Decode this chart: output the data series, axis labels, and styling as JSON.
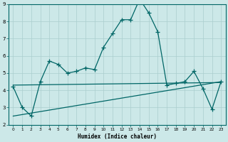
{
  "xlabel": "Humidex (Indice chaleur)",
  "x": [
    0,
    1,
    2,
    3,
    4,
    5,
    6,
    7,
    8,
    9,
    10,
    11,
    12,
    13,
    14,
    15,
    16,
    17,
    18,
    19,
    20,
    21,
    22,
    23
  ],
  "main_y": [
    4.2,
    3.0,
    2.5,
    4.5,
    5.7,
    5.5,
    5.0,
    5.1,
    5.3,
    5.2,
    6.5,
    7.3,
    8.1,
    8.1,
    9.3,
    8.5,
    7.4,
    4.3,
    4.4,
    4.5,
    5.1,
    4.1,
    2.9,
    4.5
  ],
  "flat_line": [
    4.3,
    4.45
  ],
  "flat_line_x": [
    0,
    23
  ],
  "diag_line": [
    2.5,
    4.5
  ],
  "diag_line_x": [
    0,
    23
  ],
  "bg_color": "#cce8e8",
  "grid_color": "#aacece",
  "line_color": "#006666",
  "ylim": [
    2,
    9
  ],
  "xlim": [
    -0.5,
    23.5
  ],
  "yticks": [
    2,
    3,
    4,
    5,
    6,
    7,
    8,
    9
  ],
  "xticks": [
    0,
    1,
    2,
    3,
    4,
    5,
    6,
    7,
    8,
    9,
    10,
    11,
    12,
    13,
    14,
    15,
    16,
    17,
    18,
    19,
    20,
    21,
    22,
    23
  ]
}
